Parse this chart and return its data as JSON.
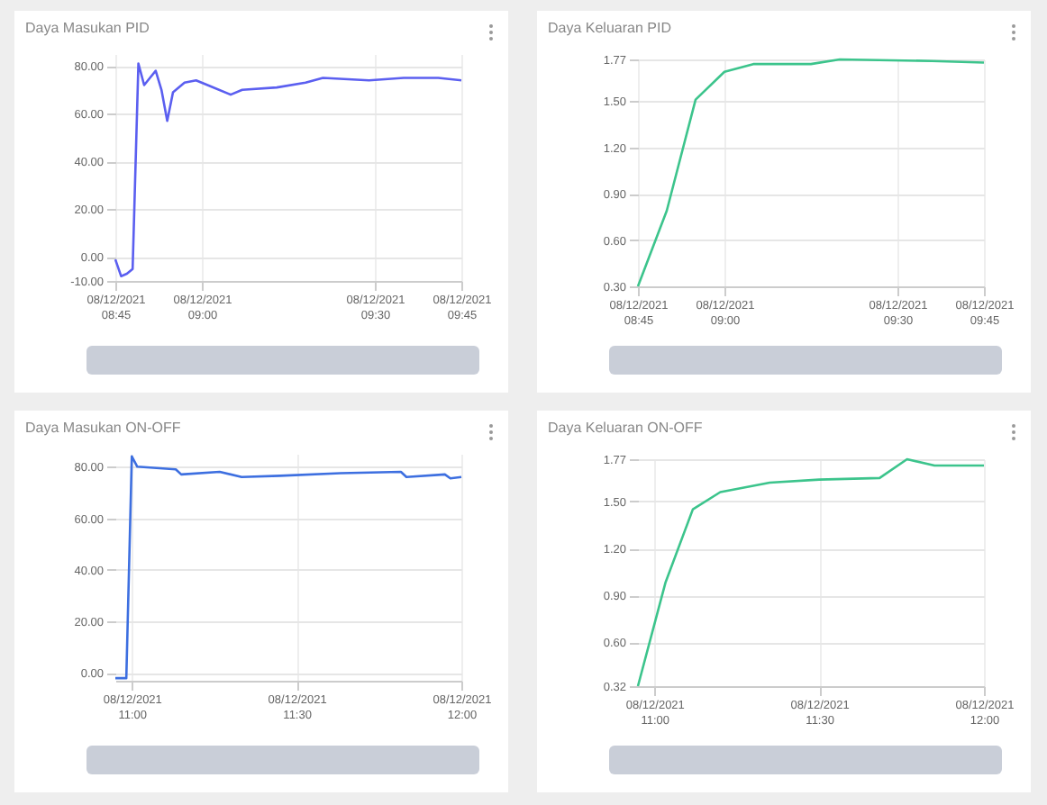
{
  "chart_data": [
    {
      "type": "line",
      "title": "Daya Masukan PID",
      "grid": true,
      "x": [
        "2021-12-08T08:45",
        "2021-12-08T08:46",
        "2021-12-08T08:47",
        "2021-12-08T08:48",
        "2021-12-08T08:49",
        "2021-12-08T08:50",
        "2021-12-08T08:51",
        "2021-12-08T08:52",
        "2021-12-08T08:53",
        "2021-12-08T08:54",
        "2021-12-08T08:55",
        "2021-12-08T08:57",
        "2021-12-08T08:59",
        "2021-12-08T09:01",
        "2021-12-08T09:05",
        "2021-12-08T09:07",
        "2021-12-08T09:13",
        "2021-12-08T09:18",
        "2021-12-08T09:21",
        "2021-12-08T09:29",
        "2021-12-08T09:35",
        "2021-12-08T09:41",
        "2021-12-08T09:45"
      ],
      "series": [
        {
          "color": "#5b5ff0",
          "values": [
            -1,
            -8,
            -7,
            -5,
            81,
            72,
            75,
            78,
            70,
            57,
            69,
            73,
            74,
            72,
            68,
            70,
            71,
            73,
            75,
            74,
            75,
            75,
            74
          ]
        }
      ],
      "xlim": [
        "2021-12-08T08:45",
        "2021-12-08T09:45"
      ],
      "xticks": [
        {
          "value": "2021-12-08T08:45",
          "label": "08/12/2021 08:45"
        },
        {
          "value": "2021-12-08T09:00",
          "label": "08/12/2021 09:00"
        },
        {
          "value": "2021-12-08T09:30",
          "label": "08/12/2021 09:30"
        },
        {
          "value": "2021-12-08T09:45",
          "label": "08/12/2021 09:45"
        }
      ],
      "ylim": [
        -10,
        85
      ],
      "yticks": [
        {
          "value": -10,
          "label": "-10.00"
        },
        {
          "value": 0,
          "label": "0.00"
        },
        {
          "value": 20,
          "label": "20.00"
        },
        {
          "value": 40,
          "label": "40.00"
        },
        {
          "value": 60,
          "label": "60.00"
        },
        {
          "value": 80,
          "label": "80.00"
        }
      ]
    },
    {
      "type": "line",
      "title": "Daya Keluaran PID",
      "grid": true,
      "x": [
        "2021-12-08T08:45",
        "2021-12-08T08:50",
        "2021-12-08T08:55",
        "2021-12-08T09:00",
        "2021-12-08T09:05",
        "2021-12-08T09:15",
        "2021-12-08T09:20",
        "2021-12-08T09:36",
        "2021-12-08T09:45"
      ],
      "series": [
        {
          "color": "#3cc48c",
          "values": [
            0.3,
            0.79,
            1.51,
            1.69,
            1.74,
            1.74,
            1.77,
            1.76,
            1.75
          ]
        }
      ],
      "xlim": [
        "2021-12-08T08:45",
        "2021-12-08T09:45"
      ],
      "xticks": [
        {
          "value": "2021-12-08T08:45",
          "label": "08/12/2021 08:45"
        },
        {
          "value": "2021-12-08T09:00",
          "label": "08/12/2021 09:00"
        },
        {
          "value": "2021-12-08T09:30",
          "label": "08/12/2021 09:30"
        },
        {
          "value": "2021-12-08T09:45",
          "label": "08/12/2021 09:45"
        }
      ],
      "ylim": [
        0.3,
        1.77
      ],
      "yticks": [
        {
          "value": 0.3,
          "label": "0.30"
        },
        {
          "value": 0.6,
          "label": "0.60"
        },
        {
          "value": 0.9,
          "label": "0.90"
        },
        {
          "value": 1.2,
          "label": "1.20"
        },
        {
          "value": 1.5,
          "label": "1.50"
        },
        {
          "value": 1.77,
          "label": "1.77"
        }
      ]
    },
    {
      "type": "line",
      "title": "Daya Masukan ON-OFF",
      "grid": true,
      "x": [
        "2021-12-08T10:57",
        "2021-12-08T10:59",
        "2021-12-08T11:00",
        "2021-12-08T11:01",
        "2021-12-08T11:08",
        "2021-12-08T11:09",
        "2021-12-08T11:16",
        "2021-12-08T11:20",
        "2021-12-08T11:27",
        "2021-12-08T11:38",
        "2021-12-08T11:49",
        "2021-12-08T11:50",
        "2021-12-08T11:57",
        "2021-12-08T11:58",
        "2021-12-08T12:00"
      ],
      "series": [
        {
          "color": "#3d6fe0",
          "values": [
            -2,
            -2,
            84,
            80,
            79,
            77,
            78,
            76,
            76.5,
            77.5,
            78,
            76,
            77,
            75.5,
            76
          ]
        }
      ],
      "xlim": [
        "2021-12-08T10:57",
        "2021-12-08T12:00"
      ],
      "xticks": [
        {
          "value": "2021-12-08T11:00",
          "label": "08/12/2021 11:00"
        },
        {
          "value": "2021-12-08T11:30",
          "label": "08/12/2021 11:30"
        },
        {
          "value": "2021-12-08T12:00",
          "label": "08/12/2021 12:00"
        }
      ],
      "ylim": [
        -3,
        85
      ],
      "yticks": [
        {
          "value": 0,
          "label": "0.00"
        },
        {
          "value": 20,
          "label": "20.00"
        },
        {
          "value": 40,
          "label": "40.00"
        },
        {
          "value": 60,
          "label": "60.00"
        },
        {
          "value": 80,
          "label": "80.00"
        }
      ]
    },
    {
      "type": "line",
      "title": "Daya Keluaran ON-OFF",
      "grid": true,
      "x": [
        "2021-12-08T10:57",
        "2021-12-08T11:02",
        "2021-12-08T11:07",
        "2021-12-08T11:12",
        "2021-12-08T11:21",
        "2021-12-08T11:30",
        "2021-12-08T11:41",
        "2021-12-08T11:46",
        "2021-12-08T11:51",
        "2021-12-08T12:00"
      ],
      "series": [
        {
          "color": "#3cc48c",
          "values": [
            0.32,
            0.98,
            1.45,
            1.56,
            1.62,
            1.64,
            1.65,
            1.77,
            1.73,
            1.73
          ]
        }
      ],
      "xlim": [
        "2021-12-08T10:57",
        "2021-12-08T12:00"
      ],
      "xticks": [
        {
          "value": "2021-12-08T11:00",
          "label": "08/12/2021 11:00"
        },
        {
          "value": "2021-12-08T11:30",
          "label": "08/12/2021 11:30"
        },
        {
          "value": "2021-12-08T12:00",
          "label": "08/12/2021 12:00"
        }
      ],
      "ylim": [
        0.32,
        1.77
      ],
      "yticks": [
        {
          "value": 0.32,
          "label": "0.32"
        },
        {
          "value": 0.6,
          "label": "0.60"
        },
        {
          "value": 0.9,
          "label": "0.90"
        },
        {
          "value": 1.2,
          "label": "1.20"
        },
        {
          "value": 1.5,
          "label": "1.50"
        },
        {
          "value": 1.77,
          "label": "1.77"
        }
      ]
    }
  ]
}
